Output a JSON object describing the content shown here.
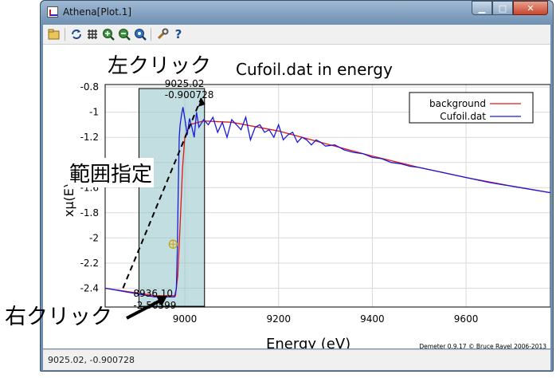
{
  "window": {
    "title": "Athena[Plot.1]",
    "buttons": {
      "minimize": "▁",
      "maximize": "□",
      "close": "✕"
    }
  },
  "toolbar": {
    "icons": [
      "open-folder-icon",
      "refresh-icon",
      "grid-icon",
      "zoom-in-icon",
      "zoom-out-icon",
      "zoom-reset-icon",
      "settings-icon",
      "help-icon"
    ],
    "help_glyph": "?"
  },
  "plot": {
    "title_prefix": "左クリック",
    "title": "Cufoil.dat in energy",
    "xlabel": "Energy   (eV)",
    "ylabel": "xμ(E)",
    "credit": "Demeter 0.9.17 © Bruce Ravel 2006-2013",
    "marker_top_x": "9025.02",
    "marker_top_y": "-0.900728",
    "marker_bottom_x": "8936.10",
    "marker_bottom_y": "-2.50599"
  },
  "chart_data": {
    "type": "line",
    "title": "Cufoil.dat in energy",
    "xlabel": "Energy   (eV)",
    "ylabel": "xμ(E)",
    "xlim": [
      8830,
      9780
    ],
    "ylim": [
      -2.55,
      -0.78
    ],
    "x_ticks": [
      9000,
      9200,
      9400,
      9600
    ],
    "y_ticks": [
      -0.8,
      -1,
      -1.2,
      -1.4,
      -1.6,
      -1.8,
      -2,
      -2.2,
      -2.4
    ],
    "grid": true,
    "legend": "top-right",
    "series": [
      {
        "name": "background",
        "color": "#e01818",
        "points": [
          [
            8830,
            -2.4
          ],
          [
            8936,
            -2.46
          ],
          [
            8980,
            -2.46
          ],
          [
            8985,
            -2.3
          ],
          [
            8990,
            -1.9
          ],
          [
            8995,
            -1.45
          ],
          [
            9000,
            -1.2
          ],
          [
            9010,
            -1.1
          ],
          [
            9040,
            -1.07
          ],
          [
            9100,
            -1.08
          ],
          [
            9200,
            -1.15
          ],
          [
            9300,
            -1.25
          ],
          [
            9400,
            -1.35
          ],
          [
            9500,
            -1.44
          ],
          [
            9600,
            -1.52
          ],
          [
            9700,
            -1.59
          ],
          [
            9780,
            -1.64
          ]
        ]
      },
      {
        "name": "Cufoil.dat",
        "color": "#1a1adc",
        "points": [
          [
            8830,
            -2.4
          ],
          [
            8936,
            -2.47
          ],
          [
            8978,
            -2.47
          ],
          [
            8982,
            -2.4
          ],
          [
            8984,
            -2.1
          ],
          [
            8986,
            -1.6
          ],
          [
            8988,
            -1.2
          ],
          [
            8990,
            -1.1
          ],
          [
            8993,
            -1.02
          ],
          [
            8996,
            -0.96
          ],
          [
            9000,
            -1.05
          ],
          [
            9005,
            -1.18
          ],
          [
            9010,
            -1.05
          ],
          [
            9015,
            -1.12
          ],
          [
            9020,
            -1.2
          ],
          [
            9025,
            -1.0
          ],
          [
            9030,
            -1.12
          ],
          [
            9040,
            -1.06
          ],
          [
            9050,
            -1.1
          ],
          [
            9060,
            -1.04
          ],
          [
            9070,
            -1.16
          ],
          [
            9080,
            -1.08
          ],
          [
            9090,
            -1.2
          ],
          [
            9100,
            -1.06
          ],
          [
            9110,
            -1.1
          ],
          [
            9120,
            -1.14
          ],
          [
            9130,
            -1.04
          ],
          [
            9140,
            -1.22
          ],
          [
            9150,
            -1.12
          ],
          [
            9160,
            -1.1
          ],
          [
            9170,
            -1.16
          ],
          [
            9180,
            -1.14
          ],
          [
            9190,
            -1.2
          ],
          [
            9200,
            -1.1
          ],
          [
            9210,
            -1.22
          ],
          [
            9220,
            -1.18
          ],
          [
            9230,
            -1.16
          ],
          [
            9240,
            -1.24
          ],
          [
            9250,
            -1.2
          ],
          [
            9260,
            -1.22
          ],
          [
            9270,
            -1.26
          ],
          [
            9280,
            -1.22
          ],
          [
            9290,
            -1.24
          ],
          [
            9300,
            -1.27
          ],
          [
            9320,
            -1.26
          ],
          [
            9340,
            -1.3
          ],
          [
            9360,
            -1.32
          ],
          [
            9380,
            -1.33
          ],
          [
            9400,
            -1.36
          ],
          [
            9420,
            -1.37
          ],
          [
            9440,
            -1.4
          ],
          [
            9460,
            -1.41
          ],
          [
            9480,
            -1.43
          ],
          [
            9500,
            -1.44
          ],
          [
            9550,
            -1.48
          ],
          [
            9600,
            -1.52
          ],
          [
            9650,
            -1.56
          ],
          [
            9700,
            -1.59
          ],
          [
            9780,
            -1.64
          ]
        ]
      }
    ],
    "selection_box": {
      "x_from": 8936.1,
      "x_to": 9025.02,
      "y_from": -2.50599,
      "y_to": -0.900728
    },
    "crosshair": {
      "x": 8975,
      "y": -2.05
    }
  },
  "annotations": {
    "left_click": "左クリック",
    "range": "範囲指定",
    "right_click": "右クリック"
  },
  "status": {
    "text": "9025.02, -0.900728"
  }
}
